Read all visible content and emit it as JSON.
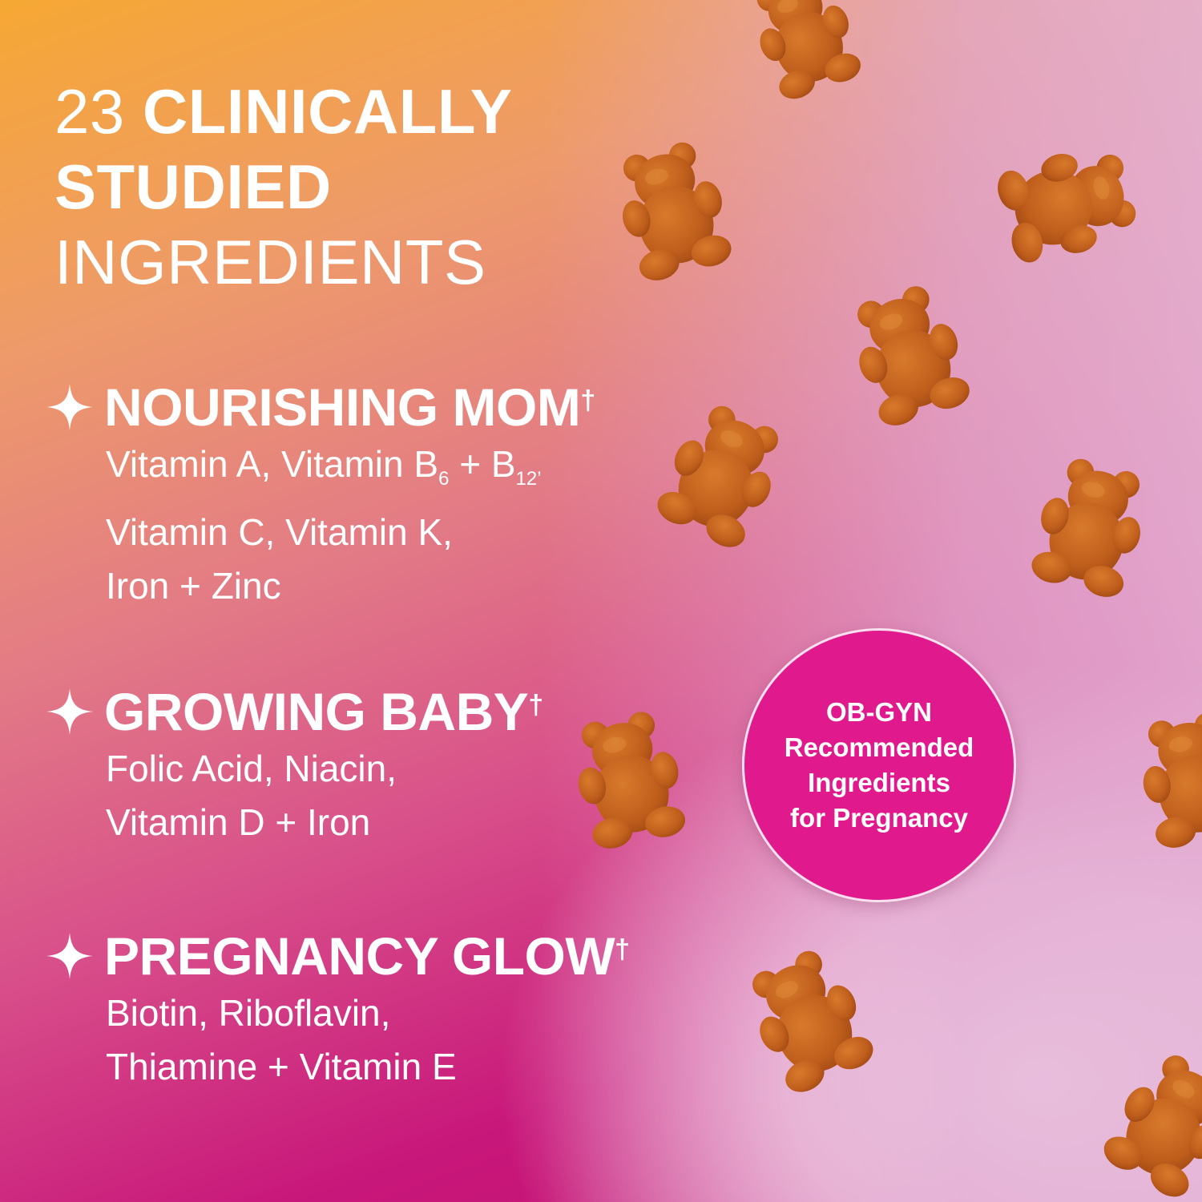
{
  "title": {
    "count": "23",
    "bold1": "CLINICALLY",
    "bold2": "STUDIED",
    "regular": "INGREDIENTS"
  },
  "sections": [
    {
      "heading": "NOURISHING MOM",
      "mark": "†",
      "lines": [
        "Vitamin A, Vitamin B",
        "6",
        " + B",
        "12",
        "’",
        "Vitamin C, Vitamin K,",
        "Iron + Zinc"
      ]
    },
    {
      "heading": "GROWING BABY",
      "mark": "†",
      "lines": [
        "Folic Acid, Niacin,",
        "Vitamin D + Iron"
      ]
    },
    {
      "heading": "PREGNANCY GLOW",
      "mark": "†",
      "lines": [
        "Biotin, Riboflavin,",
        "Thiamine + Vitamin E"
      ]
    }
  ],
  "badge": {
    "lines": [
      "OB-GYN",
      "Recommended",
      "Ingredients",
      "for Pregnancy"
    ],
    "color": "#e0198c"
  },
  "icons": {
    "bullet": "sparkle-star-icon",
    "decor": "gummy-bear"
  },
  "colors": {
    "gummy": "#c4661f",
    "gradient_top_left": "#f6a833",
    "gradient_bottom_left": "#c0106e",
    "gradient_bottom_right": "#fcf4f8"
  }
}
